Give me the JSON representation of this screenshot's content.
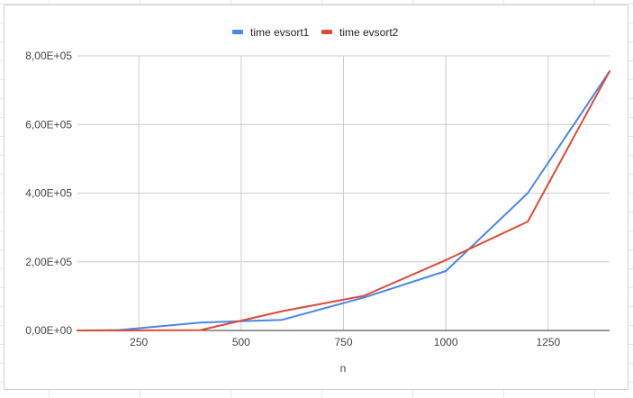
{
  "chart_data": {
    "type": "line",
    "title": "",
    "xlabel": "n",
    "ylabel": "",
    "xlim": [
      100,
      1400
    ],
    "ylim": [
      0,
      800000
    ],
    "x_ticks": [
      250,
      500,
      750,
      1000,
      1250
    ],
    "y_ticks": [
      0,
      200000,
      400000,
      600000,
      800000
    ],
    "y_tick_labels": [
      "0,00E+00",
      "2,00E+05",
      "4,00E+05",
      "6,00E+05",
      "8,00E+05"
    ],
    "grid": true,
    "legend_position": "top",
    "series": [
      {
        "name": "time evsort1",
        "color": "#4a86e8",
        "x": [
          100,
          200,
          400,
          600,
          800,
          1000,
          1200,
          1400
        ],
        "values": [
          0,
          1000,
          23000,
          31000,
          96000,
          173000,
          400000,
          755000
        ]
      },
      {
        "name": "time evsort2",
        "color": "#dd4b39",
        "x": [
          100,
          200,
          400,
          600,
          800,
          1000,
          1200,
          1400
        ],
        "values": [
          0,
          0,
          1000,
          56000,
          101000,
          205000,
          317000,
          755000
        ]
      }
    ]
  }
}
